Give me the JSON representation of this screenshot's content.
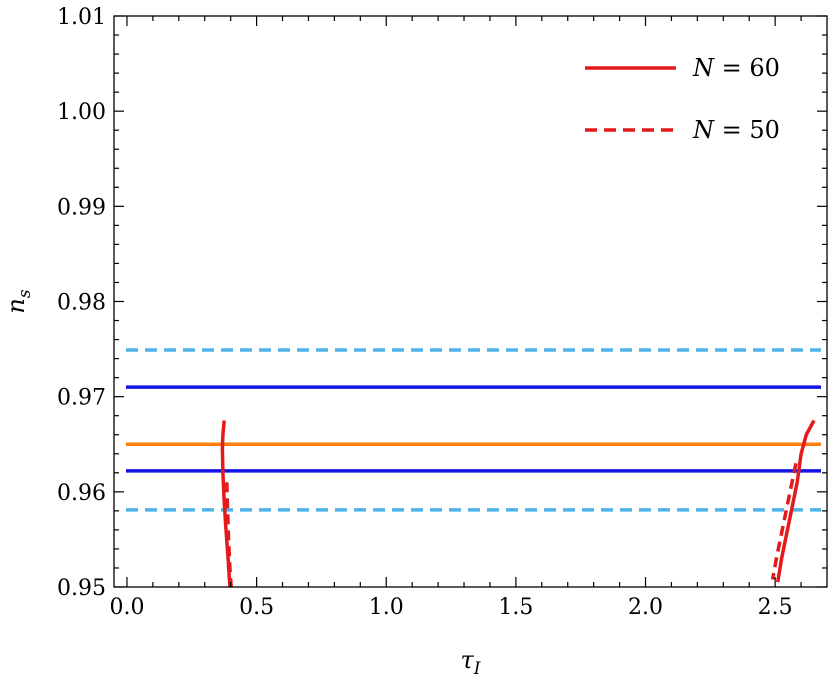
{
  "chart_data": {
    "type": "line",
    "xlabel": "τ_I",
    "ylabel": "n_s",
    "xlim": [
      -0.05,
      2.7
    ],
    "ylim": [
      0.95,
      1.01
    ],
    "xticks": [
      0.0,
      0.5,
      1.0,
      1.5,
      2.0,
      2.5
    ],
    "xtick_labels": [
      "0.0",
      "0.5",
      "1.0",
      "1.5",
      "2.0",
      "2.5"
    ],
    "yticks": [
      0.95,
      0.96,
      0.97,
      0.98,
      0.99,
      1.0,
      1.01
    ],
    "ytick_labels": [
      "0.95",
      "0.96",
      "0.97",
      "0.98",
      "0.99",
      "1.00",
      "1.01"
    ],
    "grid": false,
    "legend_position": "top-right",
    "hlines": [
      {
        "y": 0.9749,
        "color": "#4fb3e8",
        "style": "dashed"
      },
      {
        "y": 0.971,
        "color": "#1414e6",
        "style": "solid"
      },
      {
        "y": 0.965,
        "color": "#ff7f0e",
        "style": "solid"
      },
      {
        "y": 0.9622,
        "color": "#1414e6",
        "style": "solid"
      },
      {
        "y": 0.9581,
        "color": "#4fb3e8",
        "style": "dashed"
      }
    ],
    "series": [
      {
        "name": "N = 60",
        "color": "#e31a1c",
        "style": "solid",
        "segments": [
          {
            "x": [
              0.375,
              0.37,
              0.368,
              0.37,
              0.375,
              0.382,
              0.39,
              0.397
            ],
            "y": [
              0.9675,
              0.966,
              0.9645,
              0.962,
              0.959,
              0.956,
              0.953,
              0.95
            ]
          },
          {
            "x": [
              2.65,
              2.62,
              2.6,
              2.585,
              2.57,
              2.555,
              2.54,
              2.525,
              2.51
            ],
            "y": [
              0.9675,
              0.966,
              0.964,
              0.961,
              0.959,
              0.957,
              0.955,
              0.953,
              0.9505
            ]
          }
        ]
      },
      {
        "name": "N = 50",
        "color": "#e31a1c",
        "style": "dashed",
        "segments": [
          {
            "x": [
              0.385,
              0.388,
              0.392,
              0.397,
              0.402
            ],
            "y": [
              0.961,
              0.958,
              0.955,
              0.952,
              0.95
            ]
          },
          {
            "x": [
              2.58,
              2.565,
              2.55,
              2.535,
              2.52,
              2.505,
              2.49
            ],
            "y": [
              0.963,
              0.961,
              0.959,
              0.957,
              0.955,
              0.953,
              0.9508
            ]
          }
        ]
      }
    ],
    "legend": [
      {
        "label": "N = 60",
        "var": "N",
        "rest": " = 60",
        "style": "solid",
        "color": "#e31a1c"
      },
      {
        "label": "N = 50",
        "var": "N",
        "rest": " = 50",
        "style": "dashed",
        "color": "#e31a1c"
      }
    ]
  }
}
